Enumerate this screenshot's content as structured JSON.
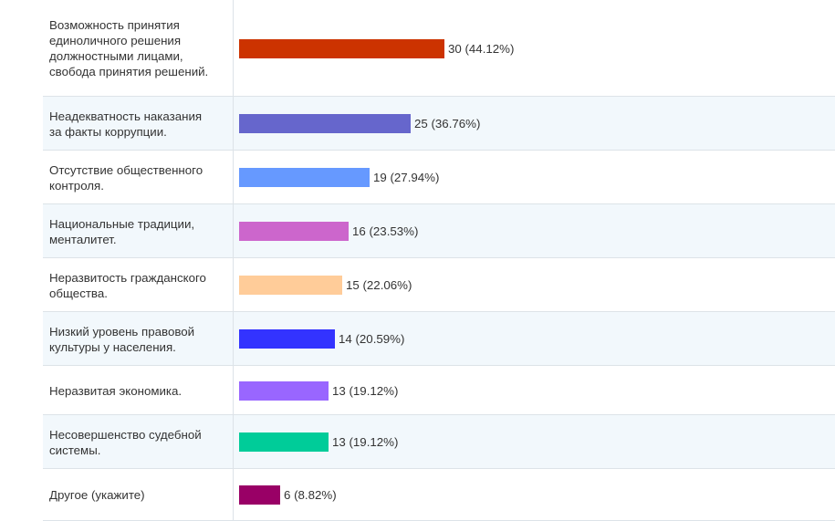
{
  "chart_data": {
    "type": "bar",
    "orientation": "horizontal",
    "categories": [
      "Возможность принятия\nединоличного решения\nдолжностными лицами,\nсвобода принятия решений.",
      "Неадекватность наказания\nза факты коррупции.",
      "Отсутствие общественного\nконтроля.",
      "Национальные традиции,\nменталитет.",
      "Неразвитость гражданского\nобщества.",
      "Низкий уровень правовой\nкультуры у населения.",
      "Неразвитая экономика.",
      "Несовершенство судебной\nсистемы.",
      "Другое (укажите)"
    ],
    "values": [
      30,
      25,
      19,
      16,
      15,
      14,
      13,
      13,
      6
    ],
    "value_labels": [
      "30 (44.12%)",
      "25 (36.76%)",
      "19 (27.94%)",
      "16 (23.53%)",
      "15 (22.06%)",
      "14 (20.59%)",
      "13 (19.12%)",
      "13 (19.12%)",
      "6 (8.82%)"
    ],
    "colors": [
      "#cc3300",
      "#6666cc",
      "#6699ff",
      "#cc66cc",
      "#ffcc99",
      "#3333ff",
      "#9966ff",
      "#00cc99",
      "#990066"
    ],
    "xlim": [
      0,
      30
    ],
    "grid": false,
    "legend": "none"
  }
}
